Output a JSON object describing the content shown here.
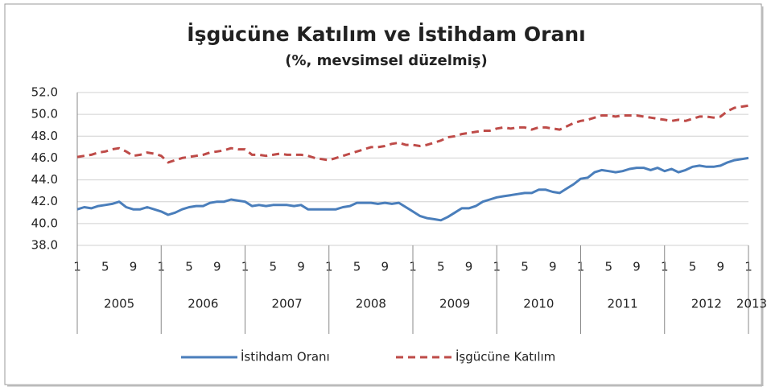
{
  "chart_data": {
    "type": "line",
    "title": "İşgücüne Katılım ve İstihdam Oranı",
    "subtitle": "(%, mevsimsel düzelmiş)",
    "categories": [
      "1",
      null,
      null,
      null,
      "5",
      null,
      null,
      null,
      "9",
      null,
      null,
      null,
      "1",
      null,
      null,
      null,
      "5",
      null,
      null,
      null,
      "9",
      null,
      null,
      null,
      "1",
      null,
      null,
      null,
      "5",
      null,
      null,
      null,
      "9",
      null,
      null,
      null,
      "1",
      null,
      null,
      null,
      "5",
      null,
      null,
      null,
      "9",
      null,
      null,
      null,
      "1",
      null,
      null,
      null,
      "5",
      null,
      null,
      null,
      "9",
      null,
      null,
      null,
      "1",
      null,
      null,
      null,
      "5",
      null,
      null,
      null,
      "9",
      null,
      null,
      null,
      "1",
      null,
      null,
      null,
      "5",
      null,
      null,
      null,
      "9",
      null,
      null,
      null,
      "1",
      null,
      null,
      null,
      "5",
      null,
      null,
      null,
      "9",
      null,
      null,
      null,
      "1"
    ],
    "years": [
      "2005",
      "2006",
      "2007",
      "2008",
      "2009",
      "2010",
      "2011",
      "2012",
      "2013"
    ],
    "ylim": [
      38,
      52
    ],
    "yticks": [
      {
        "value": 38,
        "label": "38.0"
      },
      {
        "value": 40,
        "label": "40.0"
      },
      {
        "value": 42,
        "label": "42.0"
      },
      {
        "value": 44,
        "label": "44.0"
      },
      {
        "value": 46,
        "label": "46.0"
      },
      {
        "value": 48,
        "label": "48.0"
      },
      {
        "value": 50,
        "label": "50.0"
      },
      {
        "value": 52,
        "label": "52.0"
      }
    ],
    "grid": true,
    "legend": "bottom",
    "series": [
      {
        "name": "İstihdam Oranı",
        "color": "#4a7ebb",
        "dash": false,
        "values": [
          41.3,
          41.5,
          41.4,
          41.6,
          41.7,
          41.8,
          42.0,
          41.5,
          41.3,
          41.3,
          41.5,
          41.3,
          41.1,
          40.8,
          41.0,
          41.3,
          41.5,
          41.6,
          41.6,
          41.9,
          42.0,
          42.0,
          42.2,
          42.1,
          42.0,
          41.6,
          41.7,
          41.6,
          41.7,
          41.7,
          41.7,
          41.6,
          41.7,
          41.3,
          41.3,
          41.3,
          41.3,
          41.3,
          41.5,
          41.6,
          41.9,
          41.9,
          41.9,
          41.8,
          41.9,
          41.8,
          41.9,
          41.5,
          41.1,
          40.7,
          40.5,
          40.4,
          40.3,
          40.6,
          41.0,
          41.4,
          41.4,
          41.6,
          42.0,
          42.2,
          42.4,
          42.5,
          42.6,
          42.7,
          42.8,
          42.8,
          43.1,
          43.1,
          42.9,
          42.8,
          43.2,
          43.6,
          44.1,
          44.2,
          44.7,
          44.9,
          44.8,
          44.7,
          44.8,
          45.0,
          45.1,
          45.1,
          44.9,
          45.1,
          44.8,
          45.0,
          44.7,
          44.9,
          45.2,
          45.3,
          45.2,
          45.2,
          45.3,
          45.6,
          45.8,
          45.9,
          46.0
        ]
      },
      {
        "name": "İşgücüne Katılım",
        "color": "#be4b48",
        "dash": true,
        "values": [
          46.1,
          46.2,
          46.3,
          46.5,
          46.6,
          46.8,
          46.9,
          46.6,
          46.2,
          46.3,
          46.5,
          46.4,
          46.2,
          45.6,
          45.8,
          46.0,
          46.1,
          46.2,
          46.3,
          46.5,
          46.6,
          46.7,
          46.9,
          46.8,
          46.8,
          46.3,
          46.3,
          46.2,
          46.3,
          46.4,
          46.3,
          46.3,
          46.3,
          46.2,
          46.0,
          45.9,
          45.8,
          46.0,
          46.2,
          46.4,
          46.6,
          46.8,
          47.0,
          47.0,
          47.1,
          47.3,
          47.4,
          47.2,
          47.2,
          47.1,
          47.2,
          47.4,
          47.6,
          47.9,
          48.0,
          48.2,
          48.3,
          48.4,
          48.5,
          48.5,
          48.7,
          48.8,
          48.7,
          48.8,
          48.8,
          48.6,
          48.8,
          48.8,
          48.7,
          48.6,
          48.9,
          49.2,
          49.4,
          49.5,
          49.7,
          49.9,
          49.9,
          49.8,
          49.9,
          49.9,
          49.9,
          49.8,
          49.7,
          49.6,
          49.5,
          49.4,
          49.5,
          49.4,
          49.6,
          49.8,
          49.8,
          49.7,
          49.8,
          50.3,
          50.6,
          50.7,
          50.8
        ]
      }
    ]
  }
}
